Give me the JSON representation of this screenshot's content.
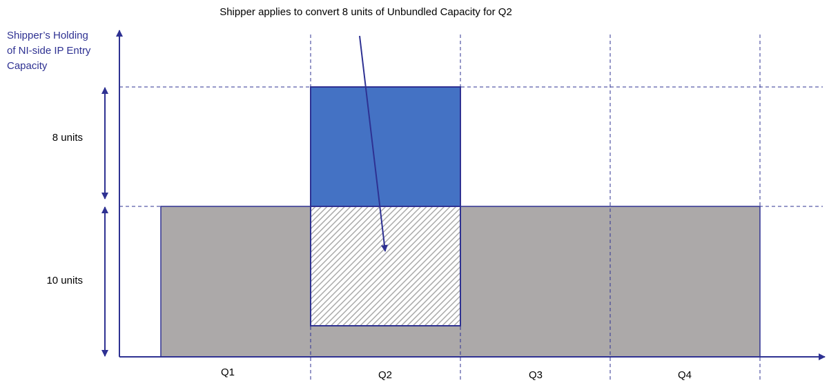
{
  "title": "Shipper applies to convert 8 units of Unbundled Capacity for Q2",
  "y_axis_label": [
    "Shipper’s Holding",
    "of NI-side IP Entry",
    "Capacity"
  ],
  "brackets": [
    "8 units",
    "10 units"
  ],
  "quarters": [
    "Q1",
    "Q2",
    "Q3",
    "Q4"
  ]
}
